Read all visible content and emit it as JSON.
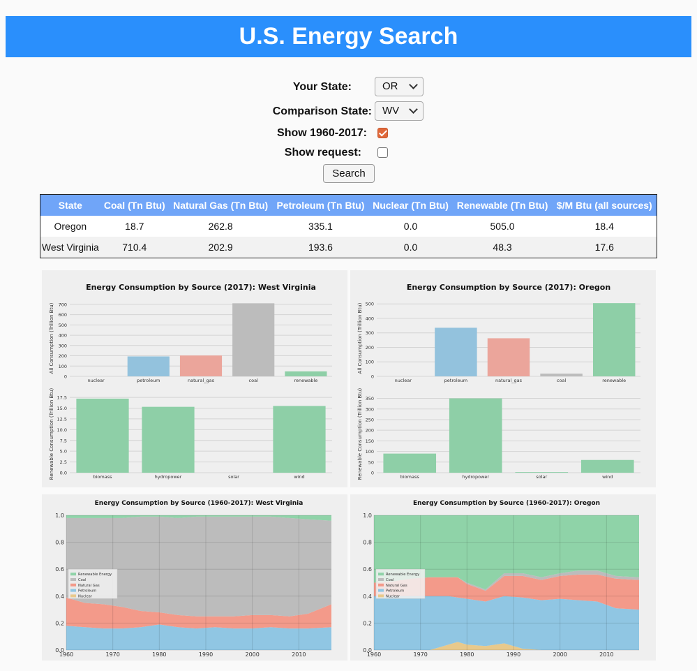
{
  "header": {
    "title": "U.S. Energy Search"
  },
  "form": {
    "your_state_label": "Your State:",
    "your_state_value": "OR",
    "comparison_state_label": "Comparison State:",
    "comparison_state_value": "WV",
    "show_history_label": "Show 1960-2017:",
    "show_history_checked": true,
    "show_request_label": "Show request:",
    "show_request_checked": false,
    "search_label": "Search"
  },
  "table": {
    "headers": [
      "State",
      "Coal (Tn Btu)",
      "Natural Gas (Tn Btu)",
      "Petroleum (Tn Btu)",
      "Nuclear (Tn Btu)",
      "Renewable (Tn Btu)",
      "$/M Btu (all sources)"
    ],
    "rows": [
      [
        "Oregon",
        "18.7",
        "262.8",
        "335.1",
        "0.0",
        "505.0",
        "18.4"
      ],
      [
        "West Virginia",
        "710.4",
        "202.9",
        "193.6",
        "0.0",
        "48.3",
        "17.6"
      ]
    ]
  },
  "chart_data": [
    {
      "type": "bar",
      "title": "Energy Consumption by Source (2017): West Virginia",
      "ylabel": "All Consumption (Trillion Btu)",
      "categories": [
        "nuclear",
        "petroleum",
        "natural_gas",
        "coal",
        "renewable"
      ],
      "values": [
        0.0,
        193.6,
        202.9,
        710.4,
        48.3
      ],
      "colors": [
        "#e8c07a",
        "#93c2dd",
        "#eba59b",
        "#bcbcbc",
        "#8ecfa7"
      ],
      "ylim": [
        0,
        740
      ],
      "yticks": [
        0,
        100,
        200,
        300,
        400,
        500,
        600,
        700
      ]
    },
    {
      "type": "bar",
      "title": "",
      "ylabel": "Renewable Consumption (Trillion Btu)",
      "categories": [
        "biomass",
        "hydropower",
        "solar",
        "wind"
      ],
      "values": [
        17.2,
        15.3,
        0.0,
        15.5
      ],
      "colors": [
        "#8ecfa7",
        "#8ecfa7",
        "#8ecfa7",
        "#8ecfa7"
      ],
      "ylim": [
        0,
        18
      ],
      "yticks": [
        0.0,
        2.5,
        5.0,
        7.5,
        10.0,
        12.5,
        15.0,
        17.5
      ]
    },
    {
      "type": "bar",
      "title": "Energy Consumption by Source (2017): Oregon",
      "ylabel": "All Consumption (Trillion Btu)",
      "categories": [
        "nuclear",
        "petroleum",
        "natural_gas",
        "coal",
        "renewable"
      ],
      "values": [
        0.0,
        335.1,
        262.8,
        18.7,
        505.0
      ],
      "colors": [
        "#e8c07a",
        "#93c2dd",
        "#eba59b",
        "#bcbcbc",
        "#8ecfa7"
      ],
      "ylim": [
        0,
        525
      ],
      "yticks": [
        0,
        100,
        200,
        300,
        400,
        500
      ]
    },
    {
      "type": "bar",
      "title": "",
      "ylabel": "Renewable Consumption (Trillion Btu)",
      "categories": [
        "biomass",
        "hydropower",
        "solar",
        "wind"
      ],
      "values": [
        90,
        350,
        3,
        60
      ],
      "colors": [
        "#8ecfa7",
        "#8ecfa7",
        "#8ecfa7",
        "#8ecfa7"
      ],
      "ylim": [
        0,
        365
      ],
      "yticks": [
        0,
        50,
        100,
        150,
        200,
        250,
        300,
        350
      ]
    },
    {
      "type": "area",
      "title": "Energy Consumption by Source (1960-2017): West Virginia",
      "x": [
        1960,
        1964,
        1968,
        1972,
        1976,
        1980,
        1984,
        1988,
        1992,
        1996,
        2000,
        2004,
        2008,
        2012,
        2017
      ],
      "series": [
        {
          "name": "Nuclear",
          "color": "#e8c98c",
          "values": [
            0,
            0,
            0,
            0,
            0,
            0,
            0,
            0,
            0,
            0,
            0,
            0,
            0,
            0,
            0
          ]
        },
        {
          "name": "Petroleum",
          "color": "#90c6e3",
          "values": [
            0.18,
            0.17,
            0.16,
            0.16,
            0.17,
            0.19,
            0.17,
            0.16,
            0.17,
            0.16,
            0.16,
            0.17,
            0.16,
            0.16,
            0.17
          ]
        },
        {
          "name": "Natural Gas",
          "color": "#f39a8a",
          "values": [
            0.21,
            0.18,
            0.18,
            0.16,
            0.12,
            0.09,
            0.09,
            0.09,
            0.08,
            0.09,
            0.1,
            0.09,
            0.09,
            0.11,
            0.17
          ]
        },
        {
          "name": "Coal",
          "color": "#bcbcbc",
          "values": [
            0.59,
            0.63,
            0.64,
            0.66,
            0.7,
            0.71,
            0.72,
            0.74,
            0.74,
            0.74,
            0.73,
            0.73,
            0.73,
            0.7,
            0.62
          ]
        },
        {
          "name": "Renewable Energy",
          "color": "#8fd3a8",
          "values": [
            0.02,
            0.02,
            0.02,
            0.02,
            0.01,
            0.01,
            0.02,
            0.01,
            0.01,
            0.01,
            0.01,
            0.01,
            0.02,
            0.03,
            0.04
          ]
        }
      ],
      "ylim": [
        0,
        1.0
      ],
      "yticks": [
        0.0,
        0.2,
        0.4,
        0.6,
        0.8,
        1.0
      ],
      "xticks": [
        1960,
        1970,
        1980,
        1990,
        2000,
        2010
      ],
      "legend": "middle-left"
    },
    {
      "type": "area",
      "title": "Energy Consumption by Source (1960-2017): Oregon",
      "x": [
        1960,
        1964,
        1968,
        1972,
        1976,
        1978,
        1980,
        1984,
        1988,
        1992,
        1996,
        2000,
        2004,
        2008,
        2012,
        2017
      ],
      "series": [
        {
          "name": "Nuclear",
          "color": "#e8c98c",
          "values": [
            0,
            0,
            0,
            0,
            0.04,
            0.06,
            0.04,
            0.03,
            0.05,
            0.01,
            0,
            0,
            0,
            0,
            0,
            0
          ]
        },
        {
          "name": "Petroleum",
          "color": "#90c6e3",
          "values": [
            0.4,
            0.4,
            0.4,
            0.4,
            0.36,
            0.33,
            0.34,
            0.33,
            0.35,
            0.38,
            0.37,
            0.38,
            0.37,
            0.36,
            0.31,
            0.3
          ]
        },
        {
          "name": "Natural Gas",
          "color": "#f39a8a",
          "values": [
            0.1,
            0.11,
            0.13,
            0.14,
            0.14,
            0.15,
            0.11,
            0.08,
            0.15,
            0.16,
            0.15,
            0.17,
            0.19,
            0.2,
            0.22,
            0.22
          ]
        },
        {
          "name": "Coal",
          "color": "#bcbcbc",
          "values": [
            0,
            0,
            0,
            0,
            0,
            0,
            0.01,
            0.01,
            0.02,
            0.02,
            0.02,
            0.02,
            0.03,
            0.03,
            0.02,
            0.02
          ]
        },
        {
          "name": "Renewable Energy",
          "color": "#8fd3a8",
          "values": [
            0.5,
            0.49,
            0.47,
            0.46,
            0.46,
            0.46,
            0.5,
            0.55,
            0.43,
            0.43,
            0.46,
            0.43,
            0.41,
            0.41,
            0.45,
            0.46
          ]
        }
      ],
      "ylim": [
        0,
        1.0
      ],
      "yticks": [
        0.0,
        0.2,
        0.4,
        0.6,
        0.8,
        1.0
      ],
      "xticks": [
        1960,
        1970,
        1980,
        1990,
        2000,
        2010
      ],
      "legend": "middle-left"
    }
  ]
}
